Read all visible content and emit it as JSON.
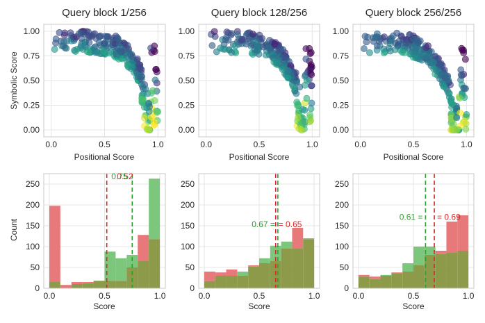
{
  "figure": {
    "ylabel_top": "Symbolic Score",
    "ylabel_bottom": "Count",
    "xlabel_top": "Positional Score",
    "xlabel_bottom": "Score"
  },
  "colors": {
    "red_fill": "#e8797a",
    "green_fill": "#7cc77c",
    "overlap_fill": "#8c9a4a",
    "red_line": "#d62728",
    "green_line": "#2ca02c",
    "grid": "#e4e4e4",
    "frame": "#c8c8c8"
  },
  "chart_data": [
    {
      "type": "scatter",
      "title": "Query block 1/256",
      "xlabel": "Positional Score",
      "ylabel": "Symbolic Score",
      "xlim": [
        -0.07,
        1.07
      ],
      "ylim": [
        -0.07,
        1.07
      ],
      "xticks": [
        "0.0",
        "0.5",
        "1.0"
      ],
      "yticks": [
        "0.00",
        "0.25",
        "0.50",
        "0.75",
        "1.00"
      ],
      "colormap": "viridis",
      "n_points": 256,
      "shape": "concave-arc"
    },
    {
      "type": "scatter",
      "title": "Query block 128/256",
      "xlabel": "Positional Score",
      "ylabel": "",
      "xlim": [
        -0.07,
        1.07
      ],
      "ylim": [
        -0.07,
        1.07
      ],
      "xticks": [
        "0.0",
        "0.5",
        "1.0"
      ],
      "yticks": [
        "0.00",
        "0.25",
        "0.50",
        "0.75",
        "1.00"
      ],
      "colormap": "viridis",
      "n_points": 256,
      "shape": "concave-arc"
    },
    {
      "type": "scatter",
      "title": "Query block 256/256",
      "xlabel": "Positional Score",
      "ylabel": "",
      "xlim": [
        -0.07,
        1.07
      ],
      "ylim": [
        -0.07,
        1.07
      ],
      "xticks": [
        "0.0",
        "0.5",
        "1.0"
      ],
      "yticks": [
        "0.00",
        "0.25",
        "0.50",
        "0.75",
        "1.00"
      ],
      "colormap": "viridis",
      "n_points": 256,
      "shape": "concave-arc"
    },
    {
      "type": "histogram",
      "xlabel": "Score",
      "ylabel": "Count",
      "xlim": [
        -0.05,
        1.05
      ],
      "ylim": [
        0,
        275
      ],
      "xticks": [
        "0.0",
        "0.5",
        "1.0"
      ],
      "yticks": [
        "0",
        "50",
        "100",
        "150",
        "200",
        "250"
      ],
      "bins": [
        0.0,
        0.1,
        0.2,
        0.3,
        0.4,
        0.5,
        0.6,
        0.7,
        0.8,
        0.9,
        1.0
      ],
      "series": [
        {
          "name": "Symbolic Score",
          "color": "red",
          "values": [
            198,
            8,
            15,
            15,
            18,
            18,
            18,
            50,
            128,
            118
          ]
        },
        {
          "name": "Positional Score",
          "color": "green",
          "values": [
            15,
            0,
            10,
            12,
            18,
            88,
            72,
            80,
            65,
            263
          ]
        }
      ],
      "vlines": [
        {
          "series": "Symbolic Score",
          "x": 0.52,
          "label": "0.52"
        },
        {
          "series": "Positional Score",
          "x": 0.75,
          "label": "0.75"
        }
      ]
    },
    {
      "type": "histogram",
      "xlabel": "Score",
      "ylabel": "",
      "xlim": [
        -0.05,
        1.05
      ],
      "ylim": [
        0,
        275
      ],
      "xticks": [
        "0.0",
        "0.5",
        "1.0"
      ],
      "yticks": [
        "0",
        "50",
        "100",
        "150",
        "200",
        "250"
      ],
      "bins": [
        0.0,
        0.1,
        0.2,
        0.3,
        0.4,
        0.5,
        0.6,
        0.7,
        0.8,
        0.9,
        1.0
      ],
      "series": [
        {
          "name": "Symbolic Score",
          "color": "red",
          "values": [
            40,
            38,
            45,
            30,
            55,
            60,
            65,
            95,
            145,
            118
          ]
        },
        {
          "name": "Positional Score",
          "color": "green",
          "values": [
            17,
            30,
            30,
            40,
            52,
            72,
            102,
            112,
            95,
            120
          ]
        }
      ],
      "vlines": [
        {
          "series": "Positional Score",
          "x": 0.67,
          "label": "0.67"
        },
        {
          "series": "Symbolic Score",
          "x": 0.65,
          "label": "0.65"
        }
      ]
    },
    {
      "type": "histogram",
      "xlabel": "Score",
      "ylabel": "",
      "xlim": [
        -0.05,
        1.05
      ],
      "ylim": [
        0,
        275
      ],
      "xticks": [
        "0.0",
        "0.5",
        "1.0"
      ],
      "yticks": [
        "0",
        "50",
        "100",
        "150",
        "200",
        "250"
      ],
      "bins": [
        0.0,
        0.1,
        0.2,
        0.3,
        0.4,
        0.5,
        0.6,
        0.7,
        0.8,
        0.9,
        1.0
      ],
      "series": [
        {
          "name": "Symbolic Score",
          "color": "red",
          "values": [
            32,
            28,
            30,
            38,
            40,
            55,
            80,
            90,
            160,
            175
          ]
        },
        {
          "name": "Positional Score",
          "color": "green",
          "values": [
            28,
            22,
            32,
            35,
            60,
            100,
            100,
            82,
            85,
            90
          ]
        }
      ],
      "vlines": [
        {
          "series": "Positional Score",
          "x": 0.61,
          "label": "0.61 ="
        },
        {
          "series": "Symbolic Score",
          "x": 0.69,
          "label": "= 0.69"
        }
      ]
    }
  ]
}
